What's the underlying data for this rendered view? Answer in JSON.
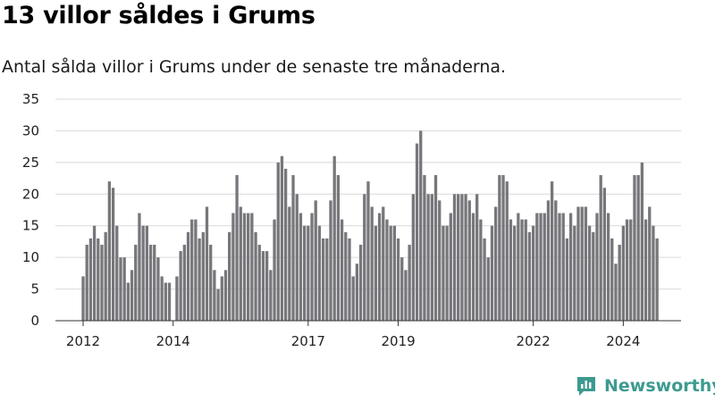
{
  "title": "13 villor såldes i Grums",
  "subtitle": "Antal sålda villor i Grums under de senaste tre månaderna.",
  "brand": {
    "name": "Newsworthy",
    "icon": "newsworthy-logo-icon",
    "color": "#3d9a90"
  },
  "chart_data": {
    "type": "bar",
    "ylim": [
      0,
      35
    ],
    "y_ticks": [
      0,
      5,
      10,
      15,
      20,
      25,
      30,
      35
    ],
    "grid": "horizontal",
    "bar_color": "#77767b",
    "highlight_color": "#2a9d94",
    "start_month": "2012-01",
    "x_ticks": [
      {
        "label": "2012",
        "index": 0
      },
      {
        "label": "2014",
        "index": 24
      },
      {
        "label": "2017",
        "index": 60
      },
      {
        "label": "2019",
        "index": 84
      },
      {
        "label": "2022",
        "index": 120
      },
      {
        "label": "2024",
        "index": 144
      }
    ],
    "values": [
      7,
      12,
      13,
      15,
      13,
      12,
      14,
      22,
      21,
      15,
      10,
      10,
      6,
      8,
      12,
      17,
      15,
      15,
      12,
      12,
      10,
      7,
      6,
      6,
      null,
      7,
      11,
      12,
      14,
      16,
      16,
      13,
      14,
      18,
      12,
      8,
      5,
      7,
      8,
      14,
      17,
      23,
      18,
      17,
      17,
      17,
      14,
      12,
      11,
      11,
      8,
      16,
      25,
      26,
      24,
      18,
      23,
      20,
      17,
      15,
      15,
      17,
      19,
      15,
      13,
      13,
      19,
      26,
      23,
      16,
      14,
      13,
      7,
      9,
      12,
      20,
      22,
      18,
      15,
      17,
      18,
      16,
      15,
      15,
      13,
      10,
      8,
      12,
      20,
      28,
      30,
      23,
      20,
      20,
      23,
      19,
      15,
      15,
      17,
      20,
      20,
      20,
      20,
      19,
      17,
      20,
      16,
      13,
      10,
      15,
      18,
      23,
      23,
      22,
      16,
      15,
      17,
      16,
      16,
      14,
      15,
      17,
      17,
      17,
      19,
      22,
      19,
      17,
      17,
      13,
      17,
      15,
      18,
      18,
      18,
      15,
      14,
      17,
      23,
      21,
      17,
      13,
      9,
      12,
      15,
      16,
      16,
      23,
      23,
      25,
      16,
      18,
      15,
      13
    ],
    "highlight_index": 154,
    "data_label": "13"
  }
}
